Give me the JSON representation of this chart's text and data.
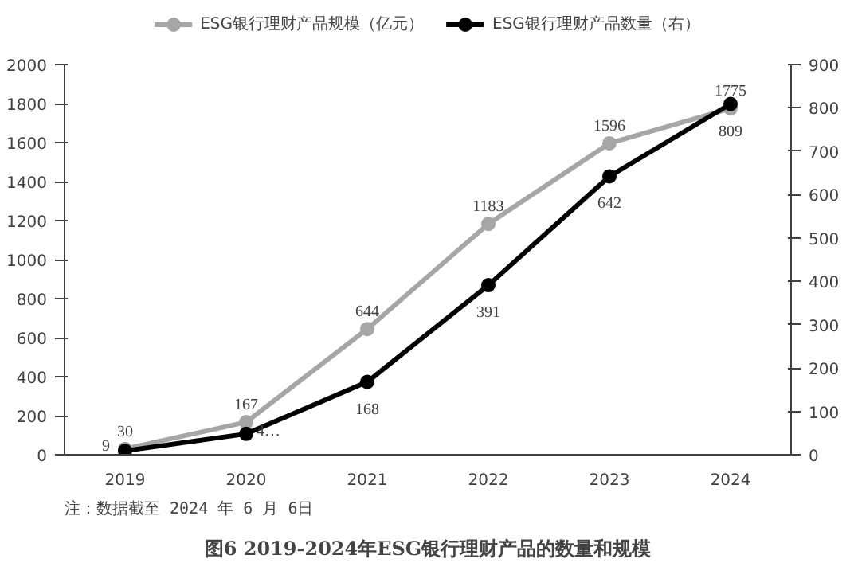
{
  "chart_data": {
    "type": "line",
    "title": "图6 2019-2024年ESG银行理财产品的数量和规模",
    "annotations": [
      "注：数据截至 2024 年 6 月 6日"
    ],
    "categories": [
      "2019",
      "2020",
      "2021",
      "2022",
      "2023",
      "2024"
    ],
    "series": [
      {
        "name": "ESG银行理财产品规模（亿元）",
        "color": "#a6a6a6",
        "values": [
          30,
          167,
          644,
          1183,
          1596,
          1775
        ],
        "value_labels": [
          "30",
          "167",
          "644",
          "1183",
          "1596",
          "1775"
        ]
      },
      {
        "name": "ESG银行理财产品数量（右）",
        "color": "#000000",
        "axis": "y2",
        "values": [
          9,
          48,
          168,
          391,
          642,
          809
        ],
        "value_labels": [
          "9",
          "4…",
          "168",
          "391",
          "642",
          "809"
        ]
      }
    ],
    "ylim": [
      0,
      2000
    ],
    "yticks": [
      0,
      200,
      400,
      600,
      800,
      1000,
      1200,
      1400,
      1600,
      1800,
      2000
    ],
    "y2lim": [
      0,
      900
    ],
    "y2ticks": [
      0,
      100,
      200,
      300,
      400,
      500,
      600,
      700,
      800,
      900
    ],
    "grid": false,
    "legend": "top",
    "marker": "circle",
    "line_style": "solid"
  }
}
